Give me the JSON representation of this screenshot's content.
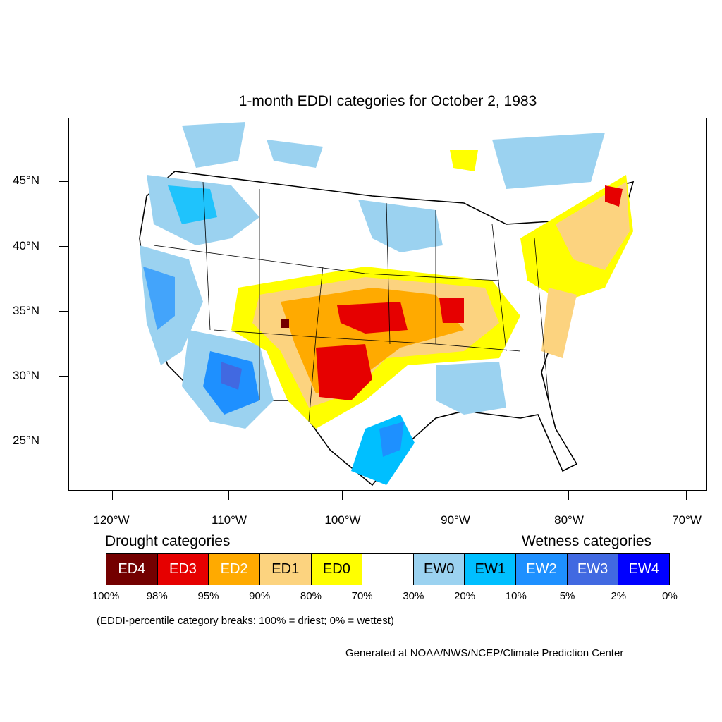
{
  "title": "1-month EDDI categories for October 2, 1983",
  "map": {
    "latitude_labels": [
      "45°N",
      "40°N",
      "35°N",
      "30°N",
      "25°N"
    ],
    "longitude_labels": [
      "120°W",
      "110°W",
      "100°W",
      "90°W",
      "80°W",
      "70°W"
    ]
  },
  "legend": {
    "drought_heading": "Drought categories",
    "wetness_heading": "Wetness categories",
    "categories": [
      {
        "label": "ED4",
        "color": "#730000",
        "text_color": "#ffffff"
      },
      {
        "label": "ED3",
        "color": "#e60000",
        "text_color": "#ffffff"
      },
      {
        "label": "ED2",
        "color": "#ffaa00",
        "text_color": "#ffffff"
      },
      {
        "label": "ED1",
        "color": "#fcd37f",
        "text_color": "#000000"
      },
      {
        "label": "ED0",
        "color": "#ffff00",
        "text_color": "#000000"
      },
      {
        "label": "",
        "color": "#ffffff",
        "text_color": "#000000"
      },
      {
        "label": "EW0",
        "color": "#9bd2f0",
        "text_color": "#000000"
      },
      {
        "label": "EW1",
        "color": "#00bfff",
        "text_color": "#000000"
      },
      {
        "label": "EW2",
        "color": "#1e90ff",
        "text_color": "#ffffff"
      },
      {
        "label": "EW3",
        "color": "#4169e1",
        "text_color": "#ffffff"
      },
      {
        "label": "EW4",
        "color": "#0000ff",
        "text_color": "#ffffff"
      }
    ],
    "percent_breaks": [
      "100%",
      "98%",
      "95%",
      "90%",
      "80%",
      "70%",
      "30%",
      "20%",
      "10%",
      "5%",
      "2%",
      "0%"
    ],
    "note": "(EDDI-percentile category breaks: 100% = driest; 0% = wettest)"
  },
  "credit": "Generated at NOAA/NWS/NCEP/Climate Prediction Center"
}
